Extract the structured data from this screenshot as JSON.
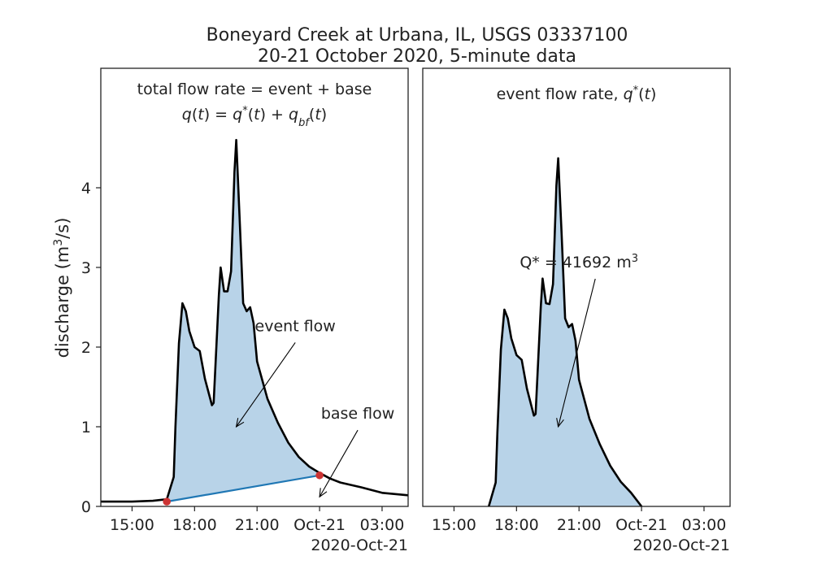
{
  "figure": {
    "title_line1": "Boneyard Creek at Urbana, IL, USGS 03337100",
    "title_line2": "20-21 October 2020, 5-minute data"
  },
  "chart_data": [
    {
      "type": "area",
      "panel": "left",
      "title_line1": "total flow rate = event + base",
      "title_line2": "q(t) = q*(t) + q_bf(t)",
      "ylabel": "discharge (m3/s)",
      "ylim": [
        0,
        5.5
      ],
      "xlim": [
        "2020-10-20 13:30",
        "2020-10-21 04:15"
      ],
      "x_ticks": [
        "15:00",
        "18:00",
        "21:00",
        "Oct-21",
        "03:00"
      ],
      "x_offset_label": "2020-Oct-21",
      "y_ticks": [
        0,
        1,
        2,
        3,
        4
      ],
      "series": [
        {
          "role": "total flow",
          "color": "#000000",
          "x": [
            "2020-10-20 13:30",
            "2020-10-20 14:00",
            "2020-10-20 15:00",
            "2020-10-20 16:00",
            "2020-10-20 16:40",
            "2020-10-20 17:00",
            "2020-10-20 17:05",
            "2020-10-20 17:15",
            "2020-10-20 17:25",
            "2020-10-20 17:35",
            "2020-10-20 17:45",
            "2020-10-20 18:00",
            "2020-10-20 18:15",
            "2020-10-20 18:30",
            "2020-10-20 18:50",
            "2020-10-20 18:55",
            "2020-10-20 19:10",
            "2020-10-20 19:15",
            "2020-10-20 19:25",
            "2020-10-20 19:35",
            "2020-10-20 19:45",
            "2020-10-20 19:55",
            "2020-10-20 20:00",
            "2020-10-20 20:10",
            "2020-10-20 20:20",
            "2020-10-20 20:30",
            "2020-10-20 20:40",
            "2020-10-20 20:50",
            "2020-10-20 21:00",
            "2020-10-20 21:30",
            "2020-10-20 22:00",
            "2020-10-20 22:30",
            "2020-10-20 23:00",
            "2020-10-20 23:30",
            "2020-10-21 00:00",
            "2020-10-21 00:30",
            "2020-10-21 01:00",
            "2020-10-21 02:00",
            "2020-10-21 03:00",
            "2020-10-21 04:15"
          ],
          "y": [
            0.06,
            0.06,
            0.06,
            0.07,
            0.09,
            0.37,
            1.0,
            2.05,
            2.55,
            2.45,
            2.2,
            2.0,
            1.95,
            1.6,
            1.27,
            1.3,
            2.65,
            3.0,
            2.7,
            2.7,
            2.95,
            4.2,
            4.6,
            3.6,
            2.55,
            2.45,
            2.5,
            2.3,
            1.82,
            1.35,
            1.05,
            0.8,
            0.62,
            0.5,
            0.42,
            0.35,
            0.3,
            0.24,
            0.17,
            0.14
          ]
        },
        {
          "role": "base flow",
          "color": "#1f77b4",
          "x": [
            "2020-10-20 16:40",
            "2020-10-21 00:00"
          ],
          "y": [
            0.06,
            0.39
          ]
        }
      ],
      "separation_points": {
        "color": "#cc3333",
        "x": [
          "2020-10-20 16:40",
          "2020-10-21 00:00"
        ],
        "y": [
          0.06,
          0.39
        ]
      },
      "fill_color": "#b8d3e8",
      "annotations": [
        {
          "text": "event flow",
          "text_xy": [
            "2020-10-20 22:50",
            2.2
          ],
          "arrow_to": [
            "2020-10-20 20:00",
            1.0
          ]
        },
        {
          "text": "base flow",
          "text_xy": [
            "2020-10-21 01:50",
            1.1
          ],
          "arrow_to": [
            "2020-10-21 00:00",
            0.12
          ]
        }
      ]
    },
    {
      "type": "area",
      "panel": "right",
      "title_text": "event flow rate,",
      "title_math": "q*(t)",
      "ylim": [
        0,
        5.5
      ],
      "xlim": [
        "2020-10-20 13:30",
        "2020-10-21 04:15"
      ],
      "x_ticks": [
        "15:00",
        "18:00",
        "21:00",
        "Oct-21",
        "03:00"
      ],
      "x_offset_label": "2020-Oct-21",
      "series": [
        {
          "role": "event flow",
          "color": "#000000",
          "x": [
            "2020-10-20 16:40",
            "2020-10-20 17:00",
            "2020-10-20 17:05",
            "2020-10-20 17:15",
            "2020-10-20 17:25",
            "2020-10-20 17:35",
            "2020-10-20 17:45",
            "2020-10-20 18:00",
            "2020-10-20 18:15",
            "2020-10-20 18:30",
            "2020-10-20 18:50",
            "2020-10-20 18:55",
            "2020-10-20 19:10",
            "2020-10-20 19:15",
            "2020-10-20 19:25",
            "2020-10-20 19:35",
            "2020-10-20 19:45",
            "2020-10-20 19:55",
            "2020-10-20 20:00",
            "2020-10-20 20:10",
            "2020-10-20 20:20",
            "2020-10-20 20:30",
            "2020-10-20 20:40",
            "2020-10-20 20:50",
            "2020-10-20 21:00",
            "2020-10-20 21:30",
            "2020-10-20 22:00",
            "2020-10-20 22:30",
            "2020-10-20 23:00",
            "2020-10-20 23:30",
            "2020-10-21 00:00"
          ],
          "y": [
            0.0,
            0.3,
            0.93,
            1.97,
            2.47,
            2.36,
            2.11,
            1.9,
            1.84,
            1.48,
            1.14,
            1.16,
            2.51,
            2.86,
            2.55,
            2.54,
            2.79,
            4.03,
            4.37,
            3.42,
            2.36,
            2.25,
            2.29,
            2.08,
            1.59,
            1.1,
            0.78,
            0.51,
            0.31,
            0.17,
            0.0
          ]
        }
      ],
      "fill_color": "#b8d3e8",
      "annotations": [
        {
          "text": "Q* = 41692 m3",
          "text_xy": [
            "2020-10-20 21:00",
            3.0
          ],
          "arrow_to": [
            "2020-10-20 20:00",
            1.0
          ]
        }
      ]
    }
  ]
}
